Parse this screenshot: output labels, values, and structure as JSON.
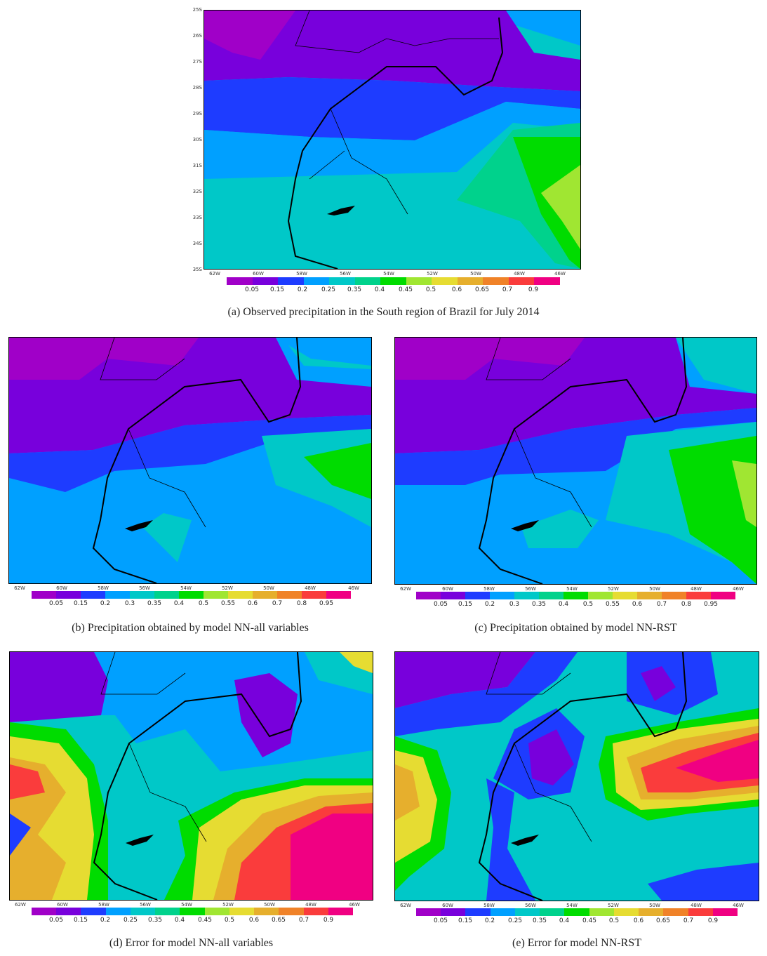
{
  "panels": {
    "a": {
      "caption": "(a) Observed precipitation in the South region of Brazil for July 2014",
      "lat_labels": [
        "25S",
        "26S",
        "27S",
        "28S",
        "29S",
        "30S",
        "31S",
        "32S",
        "33S",
        "34S",
        "35S"
      ],
      "lon_labels": [
        "62W",
        "60W",
        "58W",
        "56W",
        "54W",
        "52W",
        "50W",
        "48W",
        "46W"
      ],
      "colorbar_labels": [
        "0.05",
        "0.15",
        "0.2",
        "0.25",
        "0.35",
        "0.4",
        "0.45",
        "0.5",
        "0.6",
        "0.65",
        "0.7",
        "0.9"
      ]
    },
    "b": {
      "caption": "(b) Precipitation obtained by model NN-all variables",
      "lon_labels": [
        "62W",
        "60W",
        "58W",
        "56W",
        "54W",
        "52W",
        "50W",
        "48W",
        "46W"
      ],
      "colorbar_labels": [
        "0.05",
        "0.15",
        "0.2",
        "0.3",
        "0.35",
        "0.4",
        "0.5",
        "0.55",
        "0.6",
        "0.7",
        "0.8",
        "0.95"
      ]
    },
    "c": {
      "caption": "(c) Precipitation obtained by model NN-RST",
      "lon_labels": [
        "62W",
        "60W",
        "58W",
        "56W",
        "54W",
        "52W",
        "50W",
        "48W",
        "46W"
      ],
      "colorbar_labels": [
        "0.05",
        "0.15",
        "0.2",
        "0.3",
        "0.35",
        "0.4",
        "0.5",
        "0.55",
        "0.6",
        "0.7",
        "0.8",
        "0.95"
      ]
    },
    "d": {
      "caption": "(d) Error for model NN-all variables",
      "lon_labels": [
        "62W",
        "60W",
        "58W",
        "56W",
        "54W",
        "52W",
        "50W",
        "48W",
        "46W"
      ],
      "colorbar_labels": [
        "0.05",
        "0.15",
        "0.2",
        "0.25",
        "0.35",
        "0.4",
        "0.45",
        "0.5",
        "0.6",
        "0.65",
        "0.7",
        "0.9"
      ]
    },
    "e": {
      "caption": "(e) Error for model NN-RST",
      "lon_labels": [
        "62W",
        "60W",
        "58W",
        "56W",
        "54W",
        "52W",
        "50W",
        "48W",
        "46W"
      ],
      "colorbar_labels": [
        "0.05",
        "0.15",
        "0.2",
        "0.25",
        "0.35",
        "0.4",
        "0.45",
        "0.5",
        "0.6",
        "0.65",
        "0.7",
        "0.9"
      ]
    }
  },
  "colorbar_colors": [
    "#a000c8",
    "#7800dc",
    "#1e3cff",
    "#00a0ff",
    "#00c8c8",
    "#00d28c",
    "#00dc00",
    "#a0e632",
    "#e6dc32",
    "#e6af2d",
    "#f08228",
    "#fa3c3c",
    "#f00082"
  ]
}
